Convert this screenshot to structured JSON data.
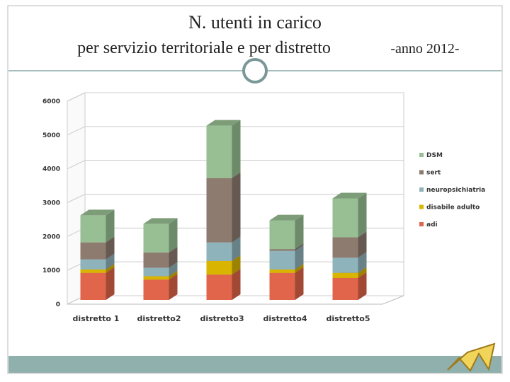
{
  "chart_data": {
    "type": "bar3d_stacked",
    "title": "N. utenti in carico",
    "subtitle": "per servizio territoriale e per distretto",
    "subtitle_suffix": "-anno 2012-",
    "categories": [
      "distretto 1",
      "distretto2",
      "distretto3",
      "distretto4",
      "distretto5"
    ],
    "series": [
      {
        "name": "adi",
        "color": "#e0654a",
        "values": [
          800,
          600,
          750,
          800,
          650
        ]
      },
      {
        "name": "disabile adulto",
        "color": "#d9b400",
        "values": [
          100,
          100,
          400,
          100,
          150
        ]
      },
      {
        "name": "neuropsichiatria",
        "color": "#8fb3bb",
        "values": [
          300,
          250,
          550,
          550,
          450
        ]
      },
      {
        "name": "sert",
        "color": "#8e7b70",
        "values": [
          500,
          450,
          1900,
          50,
          600
        ]
      },
      {
        "name": "DSM",
        "color": "#98bf93",
        "values": [
          800,
          850,
          1550,
          850,
          1150
        ]
      }
    ],
    "ylim": [
      0,
      6000
    ],
    "yticks": [
      0,
      1000,
      2000,
      3000,
      4000,
      5000,
      6000
    ],
    "grid": true
  }
}
